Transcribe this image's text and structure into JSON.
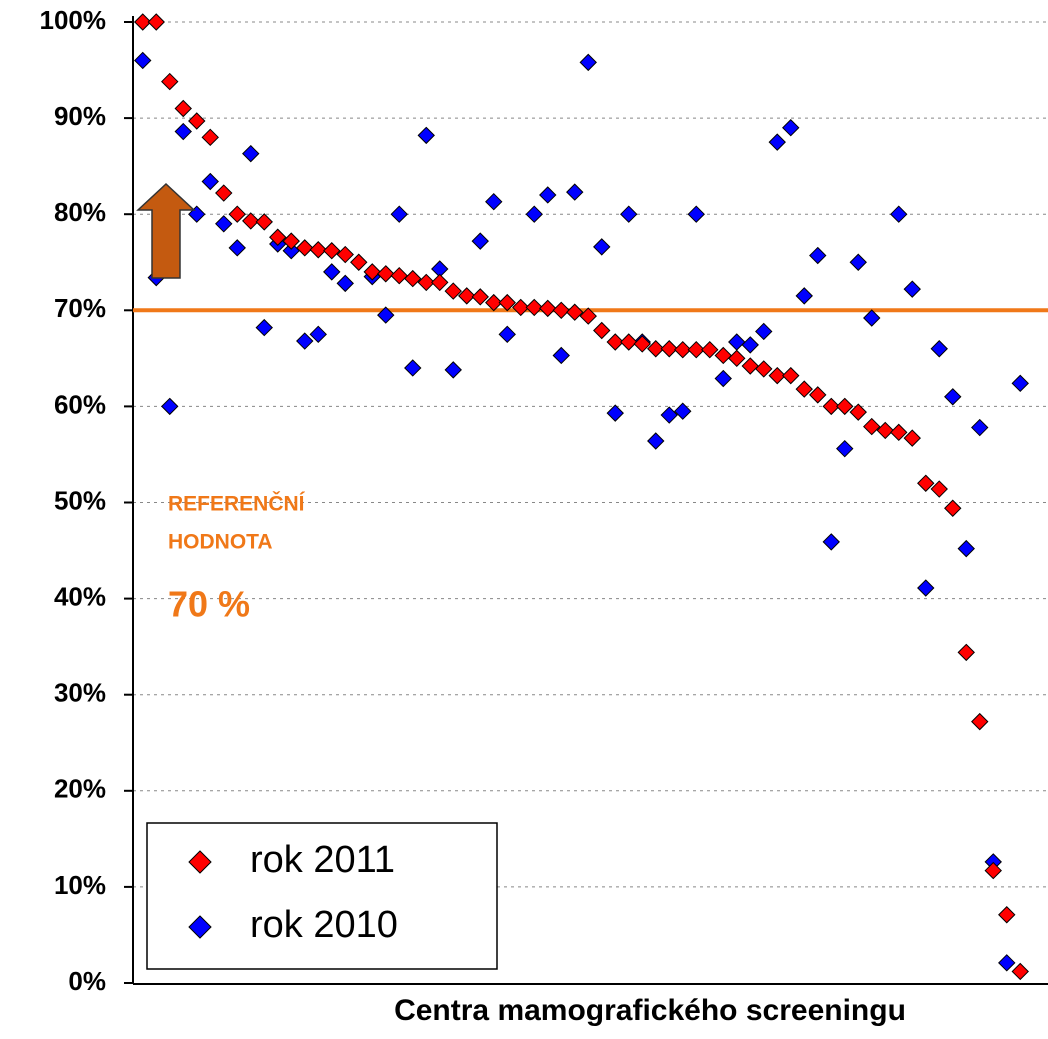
{
  "chart_data": {
    "type": "scatter",
    "x_label": "Centra mamografického screeningu",
    "annotations": [
      "REFERENČNÍ",
      "HODNOTA",
      "70 %"
    ],
    "reference_line": 70,
    "reference_color": "#f07818",
    "legend": "lower left",
    "grid": true,
    "ylim": [
      0,
      100
    ],
    "yticks": [
      {
        "value": 0,
        "label": "0%"
      },
      {
        "value": 10,
        "label": "10%"
      },
      {
        "value": 20,
        "label": "20%"
      },
      {
        "value": 30,
        "label": "30%"
      },
      {
        "value": 40,
        "label": "40%"
      },
      {
        "value": 50,
        "label": "50%"
      },
      {
        "value": 60,
        "label": "60%"
      },
      {
        "value": 70,
        "label": "70%"
      },
      {
        "value": 80,
        "label": "80%"
      },
      {
        "value": 90,
        "label": "90%"
      },
      {
        "value": 100,
        "label": "100%"
      }
    ],
    "categories": [
      null,
      null,
      null,
      null,
      null,
      null,
      null,
      null,
      null,
      null,
      null,
      null,
      null,
      null,
      null,
      null,
      null,
      null,
      null,
      null,
      null,
      null,
      null,
      null,
      null,
      null,
      null,
      null,
      null,
      null,
      null,
      null,
      null,
      null,
      null,
      null,
      null,
      null,
      null,
      null,
      null,
      null,
      null,
      null,
      null,
      null,
      null,
      null,
      null,
      null,
      null,
      null,
      null,
      null,
      null,
      null,
      null,
      null,
      null,
      null,
      null,
      null,
      null,
      null,
      null,
      null
    ],
    "series": [
      {
        "name": "rok 2011",
        "color": "#ff0000",
        "values": [
          100,
          100,
          93.8,
          91,
          89.7,
          88,
          82.2,
          80,
          79.3,
          79.2,
          77.6,
          77.2,
          76.5,
          76.3,
          76.2,
          75.8,
          75,
          74,
          73.8,
          73.6,
          73.3,
          72.9,
          72.9,
          72,
          71.5,
          71.4,
          70.8,
          70.8,
          70.3,
          70.3,
          70.2,
          70,
          69.8,
          69.4,
          67.9,
          66.7,
          66.7,
          66.5,
          66,
          66,
          65.9,
          65.9,
          65.9,
          65.3,
          65,
          64.2,
          63.9,
          63.2,
          63.2,
          61.8,
          61.2,
          60,
          60,
          59.4,
          57.9,
          57.5,
          57.3,
          56.7,
          52,
          51.4,
          49.4,
          34.4,
          27.2,
          11.7,
          7.1,
          1.2
        ]
      },
      {
        "name": "rok 2010",
        "color": "#0000ff",
        "values": [
          96,
          73.4,
          60,
          88.6,
          80,
          83.4,
          79,
          76.5,
          86.3,
          68.2,
          76.9,
          76.2,
          66.8,
          67.5,
          74,
          72.8,
          null,
          73.5,
          69.5,
          80,
          64,
          88.2,
          74.3,
          63.8,
          null,
          77.2,
          81.3,
          67.5,
          null,
          80,
          82,
          65.3,
          82.3,
          95.8,
          76.6,
          59.3,
          80,
          66.7,
          56.4,
          59.1,
          59.5,
          80,
          null,
          62.9,
          66.7,
          66.4,
          67.8,
          87.5,
          89,
          71.5,
          75.7,
          45.9,
          55.6,
          75,
          69.2,
          null,
          80,
          72.2,
          41.1,
          66,
          61,
          45.2,
          57.8,
          12.6,
          2.1,
          62.4
        ]
      }
    ]
  }
}
